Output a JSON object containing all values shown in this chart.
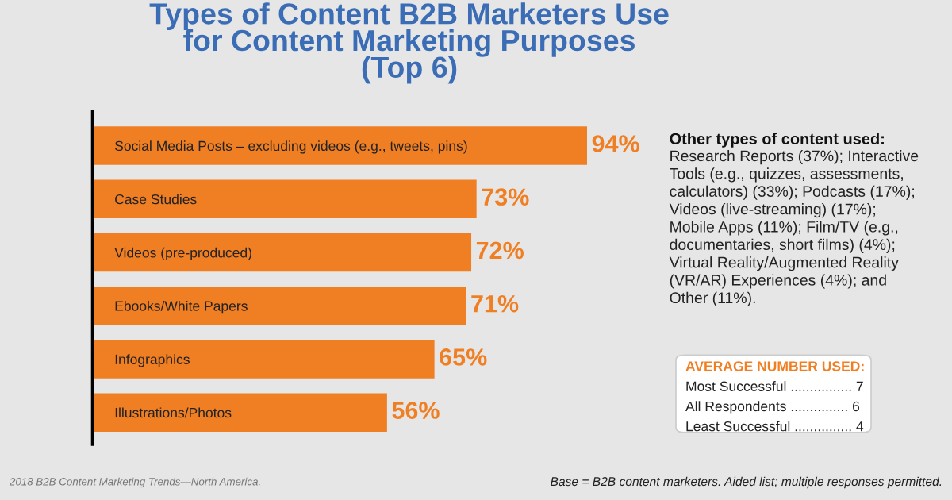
{
  "chart_data": {
    "type": "bar",
    "orientation": "horizontal",
    "title": "Types of Content B2B Marketers Use\nfor Content Marketing Purposes\n(Top 6)",
    "categories": [
      "Social Media Posts – excluding videos (e.g., tweets, pins)",
      "Case Studies",
      "Videos (pre-produced)",
      "Ebooks/White Papers",
      "Infographics",
      "Illustrations/Photos"
    ],
    "values": [
      94,
      73,
      72,
      71,
      65,
      56
    ],
    "value_labels": [
      "94%",
      "73%",
      "72%",
      "71%",
      "65%",
      "56%"
    ],
    "color": "#f07f23",
    "grid": false,
    "legend": false,
    "annotations": [
      "Other types of content used:",
      "Research Reports (37%); Interactive\nTools (e.g., quizzes, assessments,\ncalculators) (33%); Podcasts (17%);\nVideos (live-streaming) (17%);\nMobile Apps (11%); Film/TV (e.g.,\ndocumentaries, short films) (4%);\nVirtual Reality/Augmented Reality\n(VR/AR) Experiences (4%); and\nOther (11%).",
      "AVERAGE NUMBER USED:",
      "Most Successful ................ 7",
      "All Respondents ............... 6",
      "Least Successful ............... 4",
      "2018 B2B Content Marketing Trends—North America.",
      "Base = B2B content marketers. Aided list; multiple responses permitted."
    ]
  }
}
